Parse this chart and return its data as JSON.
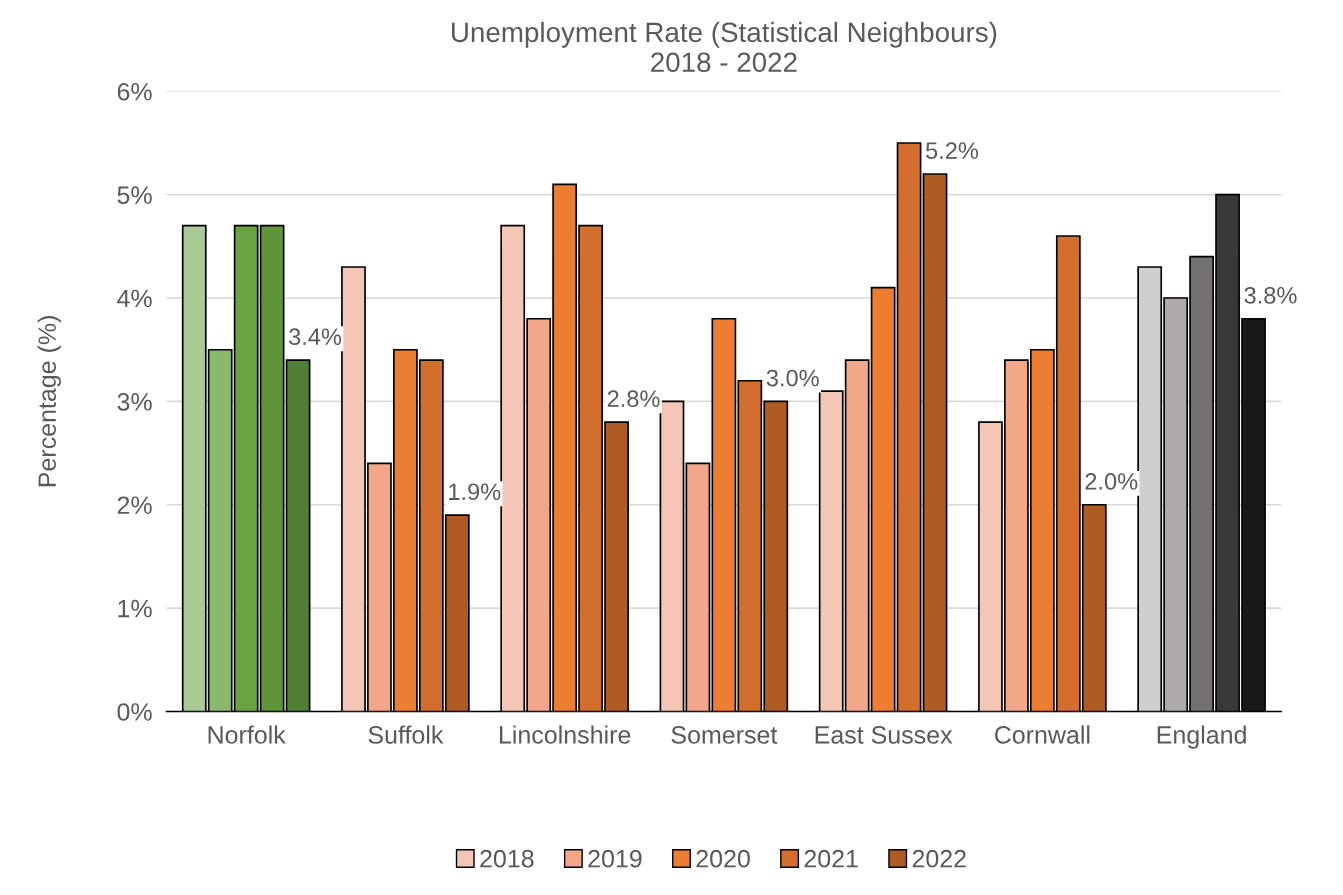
{
  "chart_data": {
    "type": "bar",
    "title": "Unemployment Rate (Statistical Neighbours)\n2018 - 2022",
    "ylabel": "Percentage (%)",
    "categories": [
      "Norfolk",
      "Suffolk",
      "Lincolnshire",
      "Somerset",
      "East Sussex",
      "Cornwall",
      "England"
    ],
    "series": [
      {
        "name": "2018",
        "color": "#f4c6b5",
        "colors": [
          "#a9c995",
          "#f4c6b5",
          "#f4c6b5",
          "#f4c6b5",
          "#f4c6b5",
          "#f4c6b5",
          "#d0cece"
        ],
        "values": [
          4.7,
          4.3,
          4.7,
          3.0,
          3.1,
          2.8,
          4.3
        ]
      },
      {
        "name": "2019",
        "color": "#f1a788",
        "colors": [
          "#8ab86d",
          "#f1a788",
          "#f1a788",
          "#f1a788",
          "#f1a788",
          "#f1a788",
          "#aeaaaa"
        ],
        "values": [
          3.5,
          2.4,
          3.8,
          2.4,
          3.4,
          3.4,
          4.0
        ]
      },
      {
        "name": "2020",
        "color": "#ed7d31",
        "colors": [
          "#6ca342",
          "#ed7d31",
          "#ed7d31",
          "#ed7d31",
          "#ed7d31",
          "#ed7d31",
          "#757171"
        ],
        "values": [
          4.7,
          3.5,
          5.1,
          3.8,
          4.1,
          3.5,
          4.4
        ]
      },
      {
        "name": "2021",
        "color": "#d46e2c",
        "colors": [
          "#5e943a",
          "#d46e2c",
          "#d46e2c",
          "#d46e2c",
          "#d46e2c",
          "#d46e2c",
          "#3b3838"
        ],
        "values": [
          4.7,
          3.4,
          4.7,
          3.2,
          5.5,
          4.6,
          5.0
        ]
      },
      {
        "name": "2022",
        "color": "#b05b24",
        "colors": [
          "#507e33",
          "#b05b24",
          "#b05b24",
          "#b05b24",
          "#b05b24",
          "#b05b24",
          "#181818"
        ],
        "values": [
          3.4,
          1.9,
          2.8,
          3.0,
          5.2,
          2.0,
          3.8
        ],
        "value_labels": [
          "3.4%",
          "1.9%",
          "2.8%",
          "3.0%",
          "5.2%",
          "2.0%",
          "3.8%"
        ]
      }
    ],
    "ylim": [
      0,
      6
    ],
    "yticks": [
      {
        "value": 0,
        "label": "0%"
      },
      {
        "value": 1,
        "label": "1%"
      },
      {
        "value": 2,
        "label": "2%"
      },
      {
        "value": 3,
        "label": "3%"
      },
      {
        "value": 4,
        "label": "4%"
      },
      {
        "value": 5,
        "label": "5%"
      },
      {
        "value": 6,
        "label": "6%"
      }
    ],
    "grid": "y",
    "legend": "bottom"
  }
}
